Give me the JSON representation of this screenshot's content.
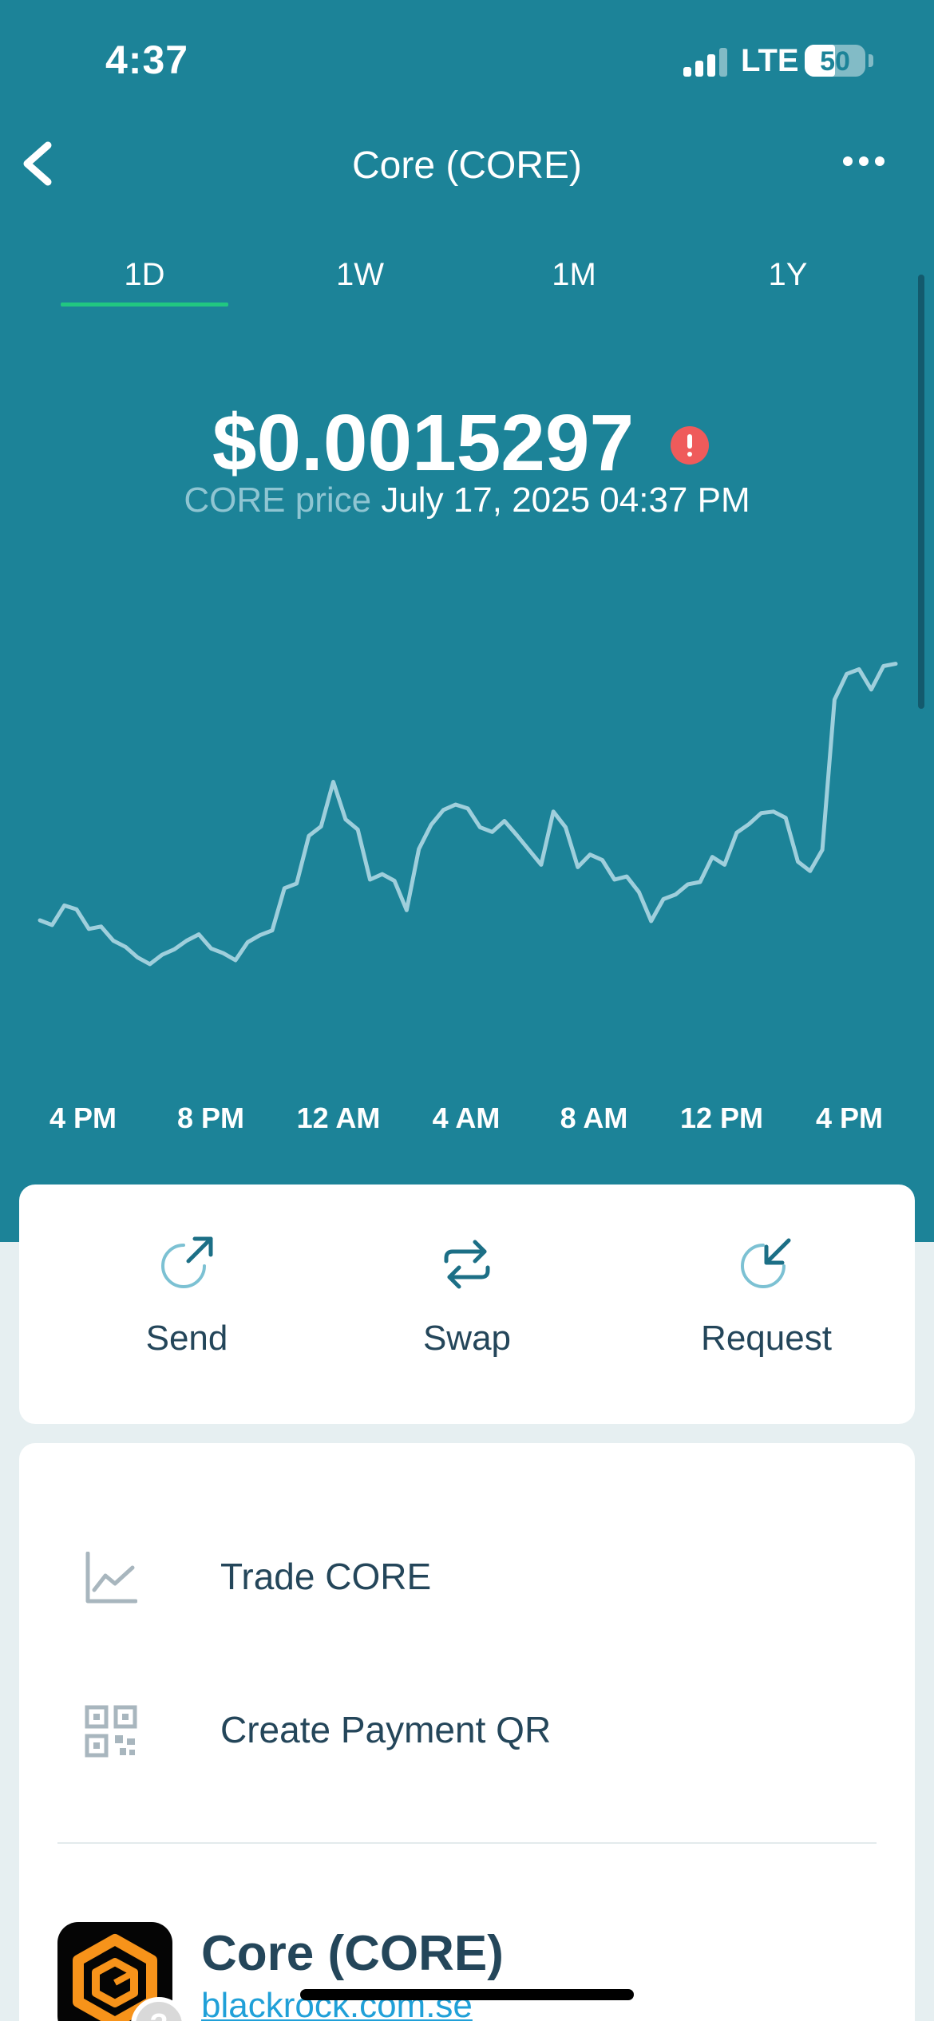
{
  "status_bar": {
    "time": "4:37",
    "network": "LTE",
    "battery": "50",
    "battery_level": 0.5
  },
  "nav": {
    "title": "Core (CORE)",
    "back_icon": "chevron-left-icon",
    "more_icon": "ellipsis-icon"
  },
  "tabs": [
    {
      "label": "1D",
      "active": true
    },
    {
      "label": "1W",
      "active": false
    },
    {
      "label": "1M",
      "active": false
    },
    {
      "label": "1Y",
      "active": false
    }
  ],
  "price": {
    "value": "$0.0015297",
    "warning_icon": "alert-icon",
    "label_symbol": "CORE",
    "label_word": "price",
    "timestamp": "July 17, 2025 04:37 PM"
  },
  "chart_data": {
    "type": "line",
    "series": [
      {
        "values": [
          0.3,
          0.288,
          0.338,
          0.328,
          0.278,
          0.284,
          0.248,
          0.232,
          0.205,
          0.188,
          0.212,
          0.226,
          0.248,
          0.264,
          0.228,
          0.216,
          0.198,
          0.244,
          0.262,
          0.274,
          0.382,
          0.394,
          0.516,
          0.54,
          0.654,
          0.558,
          0.532,
          0.404,
          0.418,
          0.401,
          0.326,
          0.482,
          0.544,
          0.582,
          0.596,
          0.586,
          0.538,
          0.526,
          0.554,
          0.518,
          0.48,
          0.442,
          0.578,
          0.538,
          0.436,
          0.468,
          0.454,
          0.404,
          0.412,
          0.372,
          0.298,
          0.354,
          0.366,
          0.392,
          0.398,
          0.462,
          0.442,
          0.524,
          0.546,
          0.574,
          0.578,
          0.562,
          0.45,
          0.426,
          0.48,
          0.864,
          0.93,
          0.942,
          0.89,
          0.95,
          0.956
        ]
      }
    ],
    "x_ticks": [
      "4 PM",
      "8 PM",
      "12 AM",
      "4 AM",
      "8 AM",
      "12 PM",
      "4 PM"
    ],
    "line_color": "#9fcfdc",
    "grid": false
  },
  "actions": [
    {
      "label": "Send",
      "icon": "send-arrow-icon"
    },
    {
      "label": "Swap",
      "icon": "swap-icon"
    },
    {
      "label": "Request",
      "icon": "request-arrow-icon"
    }
  ],
  "menu": [
    {
      "label": "Trade CORE",
      "icon": "trend-chart-icon"
    },
    {
      "label": "Create Payment QR",
      "icon": "qr-code-icon"
    }
  ],
  "token": {
    "name": "Core (CORE)",
    "link": "blackrock.com.se",
    "logo_icon": "core-hexagon-logo-icon",
    "badge": "?"
  },
  "colors": {
    "header": "#1c8398",
    "active_tab": "#21c781",
    "text_dark": "#24465a",
    "warning": "#ef5b5b",
    "link": "#20a0d8"
  }
}
